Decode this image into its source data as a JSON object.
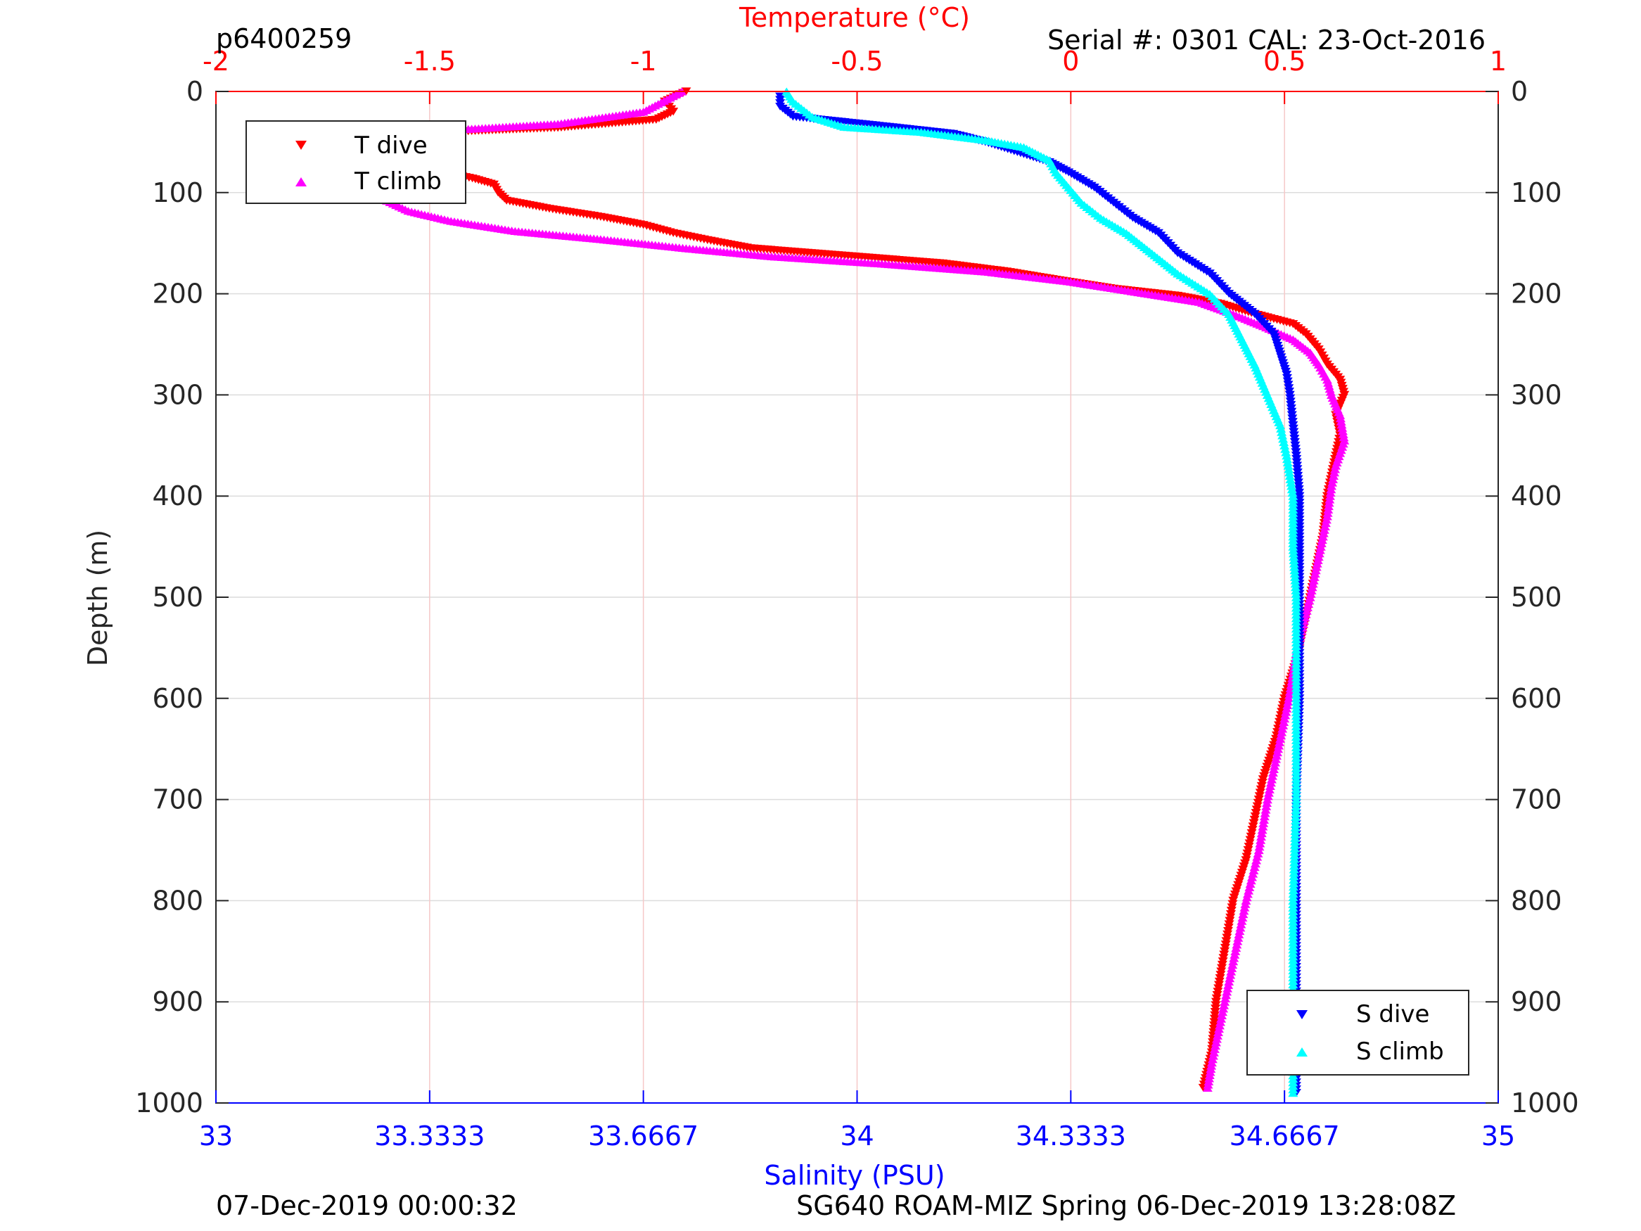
{
  "chart_data": {
    "type": "scatter",
    "header_left": "p6400259",
    "header_right": "Serial #: 0301  CAL: 23-Oct-2016",
    "footer_left": "07-Dec-2019 00:00:32",
    "footer_right": "SG640 ROAM-MIZ Spring 06-Dec-2019 13:28:08Z",
    "ylabel": "Depth (m)",
    "ylim": [
      0,
      1000
    ],
    "yreversed": true,
    "yticks": [
      "0",
      "100",
      "200",
      "300",
      "400",
      "500",
      "600",
      "700",
      "800",
      "900",
      "1000"
    ],
    "temperature_axis": {
      "label": "Temperature (°C)",
      "position": "top",
      "lim": [
        -2,
        1
      ],
      "ticks": [
        "-2",
        "-1.5",
        "-1",
        "-0.5",
        "0",
        "0.5",
        "1"
      ],
      "color": "#ff0000"
    },
    "salinity_axis": {
      "label": "Salinity (PSU)",
      "position": "bottom",
      "lim": [
        33,
        35
      ],
      "ticks": [
        "33",
        "33.3333",
        "33.6667",
        "34",
        "34.3333",
        "34.6667",
        "35"
      ],
      "color": "#0000ff"
    },
    "grid": true,
    "legends": [
      {
        "placement": "top-left",
        "entries": [
          "T dive",
          "T climb"
        ]
      },
      {
        "placement": "bottom-right",
        "entries": [
          "S dive",
          "S climb"
        ]
      }
    ],
    "series": [
      {
        "name": "T dive",
        "axis": "temperature",
        "marker": "triangle-down",
        "color": "#ff0000",
        "points": [
          [
            -0.9,
            0
          ],
          [
            -0.95,
            10
          ],
          [
            -0.93,
            20
          ],
          [
            -0.97,
            28
          ],
          [
            -1.2,
            36
          ],
          [
            -1.45,
            40
          ],
          [
            -1.6,
            45
          ],
          [
            -1.67,
            52
          ],
          [
            -1.67,
            60
          ],
          [
            -1.62,
            66
          ],
          [
            -1.55,
            73
          ],
          [
            -1.47,
            80
          ],
          [
            -1.4,
            86
          ],
          [
            -1.35,
            92
          ],
          [
            -1.34,
            100
          ],
          [
            -1.32,
            108
          ],
          [
            -1.22,
            116
          ],
          [
            -1.1,
            124
          ],
          [
            -1.0,
            132
          ],
          [
            -0.93,
            140
          ],
          [
            -0.85,
            147
          ],
          [
            -0.75,
            155
          ],
          [
            -0.6,
            160
          ],
          [
            -0.45,
            165
          ],
          [
            -0.3,
            170
          ],
          [
            -0.15,
            178
          ],
          [
            -0.05,
            185
          ],
          [
            0.1,
            195
          ],
          [
            0.25,
            202
          ],
          [
            0.35,
            210
          ],
          [
            0.43,
            220
          ],
          [
            0.52,
            230
          ],
          [
            0.55,
            240
          ],
          [
            0.58,
            255
          ],
          [
            0.6,
            270
          ],
          [
            0.63,
            285
          ],
          [
            0.64,
            300
          ],
          [
            0.62,
            320
          ],
          [
            0.63,
            340
          ],
          [
            0.62,
            360
          ],
          [
            0.61,
            380
          ],
          [
            0.6,
            400
          ],
          [
            0.59,
            440
          ],
          [
            0.57,
            480
          ],
          [
            0.55,
            520
          ],
          [
            0.53,
            560
          ],
          [
            0.5,
            600
          ],
          [
            0.48,
            640
          ],
          [
            0.45,
            680
          ],
          [
            0.43,
            720
          ],
          [
            0.41,
            760
          ],
          [
            0.38,
            800
          ],
          [
            0.36,
            850
          ],
          [
            0.34,
            900
          ],
          [
            0.33,
            950
          ],
          [
            0.31,
            985
          ]
        ]
      },
      {
        "name": "T climb",
        "axis": "temperature",
        "marker": "triangle-up",
        "color": "#ff00ff",
        "points": [
          [
            -0.91,
            0
          ],
          [
            -1.0,
            20
          ],
          [
            -1.2,
            32
          ],
          [
            -1.45,
            38
          ],
          [
            -1.6,
            45
          ],
          [
            -1.68,
            52
          ],
          [
            -1.7,
            60
          ],
          [
            -1.67,
            70
          ],
          [
            -1.62,
            82
          ],
          [
            -1.6,
            95
          ],
          [
            -1.6,
            108
          ],
          [
            -1.55,
            118
          ],
          [
            -1.45,
            128
          ],
          [
            -1.3,
            138
          ],
          [
            -1.1,
            146
          ],
          [
            -0.9,
            155
          ],
          [
            -0.7,
            163
          ],
          [
            -0.45,
            170
          ],
          [
            -0.2,
            178
          ],
          [
            0.0,
            188
          ],
          [
            0.15,
            198
          ],
          [
            0.3,
            208
          ],
          [
            0.38,
            220
          ],
          [
            0.45,
            232
          ],
          [
            0.52,
            245
          ],
          [
            0.56,
            258
          ],
          [
            0.58,
            270
          ],
          [
            0.6,
            285
          ],
          [
            0.61,
            300
          ],
          [
            0.63,
            320
          ],
          [
            0.64,
            345
          ],
          [
            0.62,
            370
          ],
          [
            0.61,
            390
          ],
          [
            0.6,
            420
          ],
          [
            0.58,
            460
          ],
          [
            0.56,
            500
          ],
          [
            0.53,
            550
          ],
          [
            0.51,
            600
          ],
          [
            0.48,
            660
          ],
          [
            0.46,
            700
          ],
          [
            0.44,
            750
          ],
          [
            0.41,
            800
          ],
          [
            0.38,
            860
          ],
          [
            0.35,
            920
          ],
          [
            0.33,
            960
          ],
          [
            0.32,
            985
          ]
        ]
      },
      {
        "name": "S dive",
        "axis": "salinity",
        "marker": "triangle-down",
        "color": "#0000ff",
        "points": [
          [
            33.88,
            5
          ],
          [
            33.88,
            15
          ],
          [
            33.9,
            25
          ],
          [
            34.05,
            35
          ],
          [
            34.15,
            42
          ],
          [
            34.2,
            50
          ],
          [
            34.25,
            60
          ],
          [
            34.3,
            70
          ],
          [
            34.33,
            80
          ],
          [
            34.37,
            95
          ],
          [
            34.4,
            110
          ],
          [
            34.43,
            125
          ],
          [
            34.47,
            140
          ],
          [
            34.5,
            160
          ],
          [
            34.55,
            180
          ],
          [
            34.58,
            200
          ],
          [
            34.62,
            220
          ],
          [
            34.65,
            240
          ],
          [
            34.66,
            260
          ],
          [
            34.67,
            280
          ],
          [
            34.675,
            300
          ],
          [
            34.68,
            330
          ],
          [
            34.685,
            360
          ],
          [
            34.69,
            400
          ],
          [
            34.69,
            450
          ],
          [
            34.69,
            500
          ],
          [
            34.69,
            600
          ],
          [
            34.685,
            700
          ],
          [
            34.685,
            800
          ],
          [
            34.685,
            900
          ],
          [
            34.685,
            990
          ]
        ]
      },
      {
        "name": "S climb",
        "axis": "salinity",
        "marker": "triangle-up",
        "color": "#00ffff",
        "points": [
          [
            33.89,
            0
          ],
          [
            33.9,
            10
          ],
          [
            33.93,
            25
          ],
          [
            33.98,
            35
          ],
          [
            34.1,
            40
          ],
          [
            34.2,
            48
          ],
          [
            34.26,
            55
          ],
          [
            34.3,
            68
          ],
          [
            34.31,
            80
          ],
          [
            34.33,
            95
          ],
          [
            34.35,
            110
          ],
          [
            34.38,
            125
          ],
          [
            34.42,
            140
          ],
          [
            34.46,
            160
          ],
          [
            34.5,
            180
          ],
          [
            34.55,
            200
          ],
          [
            34.58,
            220
          ],
          [
            34.6,
            245
          ],
          [
            34.62,
            270
          ],
          [
            34.64,
            300
          ],
          [
            34.66,
            330
          ],
          [
            34.67,
            360
          ],
          [
            34.68,
            400
          ],
          [
            34.68,
            450
          ],
          [
            34.685,
            500
          ],
          [
            34.685,
            600
          ],
          [
            34.685,
            700
          ],
          [
            34.68,
            800
          ],
          [
            34.68,
            900
          ],
          [
            34.68,
            990
          ]
        ]
      }
    ]
  }
}
